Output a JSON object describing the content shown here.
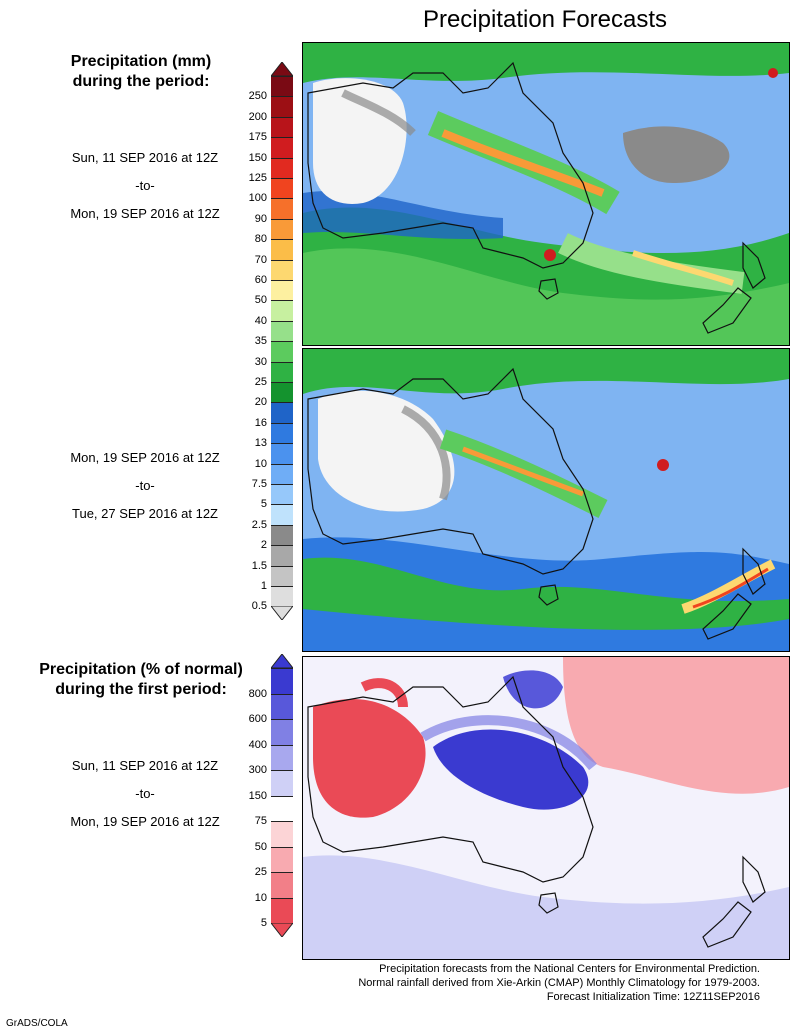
{
  "title": "Precipitation Forecasts",
  "precip_legend": {
    "heading_line1": "Precipitation (mm)",
    "heading_line2": "during the period:",
    "levels": [
      "250",
      "200",
      "175",
      "150",
      "125",
      "100",
      "90",
      "80",
      "70",
      "60",
      "50",
      "40",
      "35",
      "30",
      "25",
      "20",
      "16",
      "13",
      "10",
      "7.5",
      "5",
      "2.5",
      "2",
      "1.5",
      "1",
      "0.5"
    ],
    "colors": [
      "#7a0a14",
      "#9c0f14",
      "#b8141a",
      "#d01c1f",
      "#e12a20",
      "#f0441f",
      "#f6702a",
      "#f99a38",
      "#fbbd48",
      "#fdd870",
      "#fdf0a0",
      "#c7f0a0",
      "#96e08a",
      "#5ccb5e",
      "#2fb244",
      "#14932e",
      "#1f64c8",
      "#2f7ae0",
      "#4b92ee",
      "#6fadf6",
      "#96c8fa",
      "#bfe2fc",
      "#8a8a8a",
      "#a8a8a8",
      "#c4c4c4",
      "#dedede"
    ]
  },
  "period1": {
    "start": "Sun, 11 SEP 2016 at 12Z",
    "sep": "-to-",
    "end": "Mon, 19 SEP 2016 at 12Z"
  },
  "period2": {
    "start": "Mon, 19 SEP 2016 at 12Z",
    "sep": "-to-",
    "end": "Tue, 27 SEP 2016 at 12Z"
  },
  "anomaly_legend": {
    "heading_line1": "Precipitation (% of normal)",
    "heading_line2": "during the first period:",
    "levels": [
      "800",
      "600",
      "400",
      "300",
      "150",
      "75",
      "50",
      "25",
      "10",
      "5"
    ],
    "colors": [
      "#3a3ad0",
      "#5858da",
      "#8080e4",
      "#a8a8ee",
      "#cfd0f6",
      "#ffffff",
      "#fcd4d6",
      "#f8aab0",
      "#f27f88",
      "#ea4a56"
    ]
  },
  "period3": {
    "start": "Sun, 11 SEP 2016 at 12Z",
    "sep": "-to-",
    "end": "Mon, 19 SEP 2016 at 12Z"
  },
  "footnote": {
    "line1": "Precipitation forecasts from the National Centers for Environmental Prediction.",
    "line2": "Normal rainfall derived from Xie-Arkin (CMAP) Monthly Climatology for 1979-2003.",
    "line3": "Forecast Initialization Time: 12Z11SEP2016"
  },
  "credit": "GrADS/COLA"
}
